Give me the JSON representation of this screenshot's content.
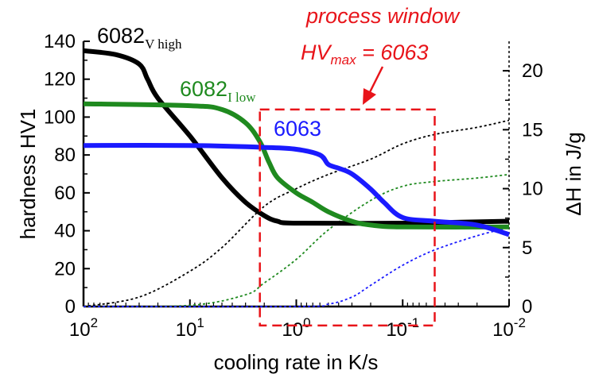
{
  "chart_data": {
    "type": "line",
    "title": "",
    "xlabel": "cooling rate in K/s",
    "ylabel": "hardness HV1",
    "y2label": "ΔH in J/g",
    "x_scale": "log-reversed",
    "xlim": [
      100,
      0.01
    ],
    "ylim": [
      0,
      140
    ],
    "y2lim": [
      0,
      22.5
    ],
    "x_ticks": [
      {
        "value": 100,
        "base": "10",
        "exp": "2"
      },
      {
        "value": 10,
        "base": "10",
        "exp": "1"
      },
      {
        "value": 1,
        "base": "10",
        "exp": "0"
      },
      {
        "value": 0.1,
        "base": "10",
        "exp": "-1"
      },
      {
        "value": 0.01,
        "base": "10",
        "exp": "-2"
      }
    ],
    "y_ticks": [
      "0",
      "20",
      "40",
      "60",
      "80",
      "100",
      "120",
      "140"
    ],
    "y2_ticks": [
      "0",
      "5",
      "10",
      "15",
      "20"
    ],
    "hardness_series": [
      {
        "name": "6082 V high",
        "label_main": "6082",
        "label_sub": "V high",
        "color": "#000000",
        "x": [
          100,
          50,
          30,
          25,
          20,
          10,
          5,
          3,
          2,
          1.5,
          1,
          0.1,
          0.01
        ],
        "y": [
          135,
          133,
          128,
          120,
          110,
          90,
          68,
          55,
          48,
          45,
          44,
          44,
          45
        ]
      },
      {
        "name": "6082 I low",
        "label_main": "6082",
        "label_sub": "I low",
        "color": "#1f8a1f",
        "x": [
          100,
          10,
          5,
          3,
          2.2,
          1.8,
          1.5,
          1,
          0.7,
          0.5,
          0.3,
          0.2,
          0.1,
          0.01
        ],
        "y": [
          107,
          106,
          104,
          97,
          87,
          76,
          68,
          60,
          55,
          50,
          45,
          43,
          42,
          42
        ]
      },
      {
        "name": "6063",
        "label_main": "6063",
        "label_sub": "",
        "color": "#1a1aff",
        "x": [
          100,
          10,
          2,
          1,
          0.6,
          0.5,
          0.4,
          0.3,
          0.2,
          0.15,
          0.1,
          0.05,
          0.02,
          0.01
        ],
        "y": [
          85,
          85,
          84,
          83,
          80,
          75,
          73,
          70,
          62,
          55,
          47,
          45,
          43,
          38
        ]
      }
    ],
    "enthalpy_series": [
      {
        "name": "6082 V high ΔH",
        "color": "#000000",
        "x": [
          100,
          30,
          10,
          5,
          2,
          1,
          0.5,
          0.2,
          0.1,
          0.05,
          0.02,
          0.01
        ],
        "y": [
          0,
          0.8,
          3,
          5,
          8.5,
          10,
          11.2,
          12.5,
          13.8,
          14.6,
          15.2,
          15.8
        ]
      },
      {
        "name": "6082 I low ΔH",
        "color": "#1f8a1f",
        "x": [
          100,
          10,
          3,
          2,
          1,
          0.5,
          0.2,
          0.1,
          0.05,
          0.02,
          0.01
        ],
        "y": [
          0,
          0.1,
          1,
          2,
          4,
          6.5,
          9,
          10.2,
          10.6,
          10.9,
          11.2
        ]
      },
      {
        "name": "6063 ΔH",
        "color": "#1a1aff",
        "x": [
          100,
          1,
          0.5,
          0.3,
          0.2,
          0.1,
          0.05,
          0.02,
          0.01
        ],
        "y": [
          0,
          0,
          0.2,
          0.8,
          1.8,
          3.5,
          4.8,
          6,
          6.7
        ]
      }
    ],
    "annotation": {
      "line1": "process window",
      "line2_main": "HV",
      "line2_sub": "max",
      "line2_rest": " = 6063",
      "color": "#e8141a",
      "window_x": [
        2.2,
        0.05
      ],
      "window_y": [
        -10,
        104
      ]
    }
  }
}
